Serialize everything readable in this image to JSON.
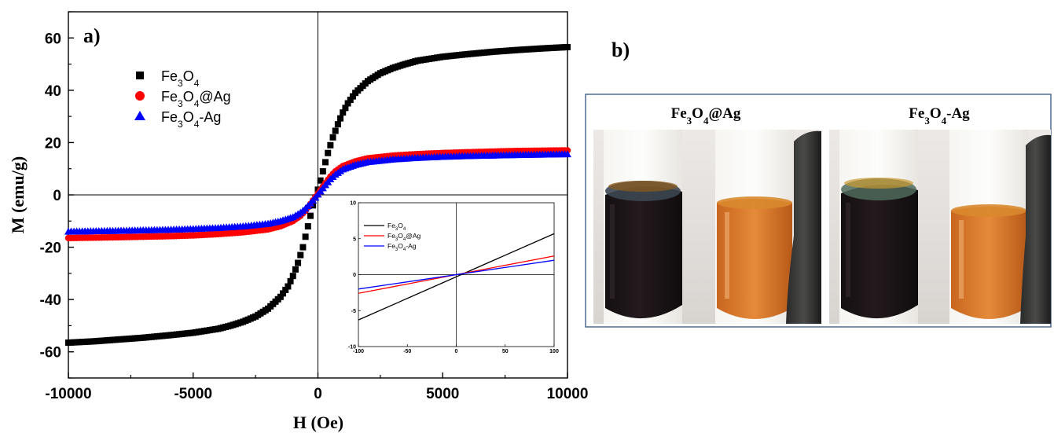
{
  "chart_data": [
    {
      "panel_label": "a)",
      "type": "scatter",
      "xlabel": "H (Oe)",
      "ylabel": "M (emu/g)",
      "xlim": [
        -10000,
        10000
      ],
      "ylim": [
        -70,
        70
      ],
      "x_ticks": [
        -10000,
        -5000,
        0,
        5000,
        10000
      ],
      "y_ticks": [
        -60,
        -40,
        -20,
        0,
        20,
        40,
        60
      ],
      "legend_position": "top-left",
      "series": [
        {
          "name_parts": [
            [
              "Fe",
              ""
            ],
            [
              "3",
              "sub"
            ],
            [
              "O",
              ""
            ],
            [
              "4",
              "sub"
            ]
          ],
          "color": "#000000",
          "marker": "square",
          "points": [
            [
              -10000,
              -56.5
            ],
            [
              -9000,
              -56
            ],
            [
              -8000,
              -55.3
            ],
            [
              -7000,
              -54.6
            ],
            [
              -6000,
              -53.7
            ],
            [
              -5000,
              -52.7
            ],
            [
              -4000,
              -51.2
            ],
            [
              -3500,
              -50
            ],
            [
              -3000,
              -48.5
            ],
            [
              -2500,
              -46.5
            ],
            [
              -2000,
              -43.5
            ],
            [
              -1500,
              -39
            ],
            [
              -1200,
              -35
            ],
            [
              -1000,
              -31
            ],
            [
              -800,
              -26
            ],
            [
              -600,
              -20
            ],
            [
              -400,
              -12
            ],
            [
              -200,
              -4
            ],
            [
              0,
              2
            ],
            [
              200,
              9
            ],
            [
              400,
              16
            ],
            [
              600,
              22
            ],
            [
              800,
              27
            ],
            [
              1000,
              31.5
            ],
            [
              1200,
              35
            ],
            [
              1500,
              39
            ],
            [
              2000,
              43.5
            ],
            [
              2500,
              46.5
            ],
            [
              3000,
              48.5
            ],
            [
              3500,
              50
            ],
            [
              4000,
              51.3
            ],
            [
              5000,
              52.8
            ],
            [
              6000,
              53.8
            ],
            [
              7000,
              54.7
            ],
            [
              8000,
              55.4
            ],
            [
              9000,
              56
            ],
            [
              10000,
              56.5
            ]
          ]
        },
        {
          "name_parts": [
            [
              "Fe",
              ""
            ],
            [
              "3",
              "sub"
            ],
            [
              "O",
              ""
            ],
            [
              "4",
              "sub"
            ],
            [
              "@Ag",
              ""
            ]
          ],
          "color": "#ff0000",
          "marker": "circle",
          "points": [
            [
              -10000,
              -16.5
            ],
            [
              -8000,
              -16.2
            ],
            [
              -6000,
              -15.8
            ],
            [
              -5000,
              -15.5
            ],
            [
              -4000,
              -15
            ],
            [
              -3000,
              -14.3
            ],
            [
              -2000,
              -13.2
            ],
            [
              -1500,
              -12
            ],
            [
              -1000,
              -10
            ],
            [
              -700,
              -8
            ],
            [
              -500,
              -6
            ],
            [
              -300,
              -3.5
            ],
            [
              -100,
              -0.8
            ],
            [
              0,
              0.5
            ],
            [
              100,
              1.8
            ],
            [
              300,
              4.5
            ],
            [
              500,
              7
            ],
            [
              700,
              9
            ],
            [
              1000,
              11
            ],
            [
              1500,
              12.8
            ],
            [
              2000,
              14
            ],
            [
              3000,
              15
            ],
            [
              4000,
              15.6
            ],
            [
              5000,
              16
            ],
            [
              6000,
              16.3
            ],
            [
              8000,
              16.8
            ],
            [
              10000,
              17
            ]
          ]
        },
        {
          "name_parts": [
            [
              "Fe",
              ""
            ],
            [
              "3",
              "sub"
            ],
            [
              "O",
              ""
            ],
            [
              "4",
              "sub"
            ],
            [
              "-Ag",
              ""
            ]
          ],
          "color": "#0000ff",
          "marker": "triangle",
          "points": [
            [
              -10000,
              -14
            ],
            [
              -8000,
              -13.7
            ],
            [
              -6000,
              -13.3
            ],
            [
              -5000,
              -13
            ],
            [
              -4000,
              -12.6
            ],
            [
              -3000,
              -12
            ],
            [
              -2000,
              -11
            ],
            [
              -1500,
              -10
            ],
            [
              -1000,
              -8.5
            ],
            [
              -700,
              -6.8
            ],
            [
              -500,
              -5.2
            ],
            [
              -300,
              -3.2
            ],
            [
              -100,
              -1
            ],
            [
              0,
              0.2
            ],
            [
              100,
              1.4
            ],
            [
              300,
              3.8
            ],
            [
              500,
              6
            ],
            [
              700,
              7.8
            ],
            [
              1000,
              9.8
            ],
            [
              1500,
              11.5
            ],
            [
              2000,
              12.6
            ],
            [
              3000,
              13.6
            ],
            [
              4000,
              14.2
            ],
            [
              5000,
              14.6
            ],
            [
              6000,
              14.9
            ],
            [
              8000,
              15.3
            ],
            [
              10000,
              15.6
            ]
          ]
        }
      ]
    },
    {
      "role": "inset",
      "type": "line",
      "xlim": [
        -100,
        100
      ],
      "ylim": [
        -10,
        10
      ],
      "x_ticks": [
        -100,
        -50,
        0,
        50,
        100
      ],
      "y_ticks": [
        -10,
        -5,
        0,
        5,
        10
      ],
      "legend_position": "top-left",
      "series": [
        {
          "name_parts": [
            [
              "Fe",
              ""
            ],
            [
              "3",
              "sub"
            ],
            [
              "O",
              ""
            ],
            [
              "4",
              "sub"
            ]
          ],
          "color": "#000000",
          "points": [
            [
              -100,
              -6.3
            ],
            [
              100,
              5.7
            ]
          ]
        },
        {
          "name_parts": [
            [
              "Fe",
              ""
            ],
            [
              "3",
              "sub"
            ],
            [
              "O",
              ""
            ],
            [
              "4",
              "sub"
            ],
            [
              "@Ag",
              ""
            ]
          ],
          "color": "#ff0000",
          "points": [
            [
              -100,
              -2.6
            ],
            [
              100,
              2.6
            ]
          ]
        },
        {
          "name_parts": [
            [
              "Fe",
              ""
            ],
            [
              "3",
              "sub"
            ],
            [
              "O",
              ""
            ],
            [
              "4",
              "sub"
            ],
            [
              "-Ag",
              ""
            ]
          ],
          "color": "#0000ff",
          "points": [
            [
              -100,
              -2.0
            ],
            [
              100,
              2.0
            ]
          ]
        }
      ]
    }
  ],
  "panel_b": {
    "label": "b)",
    "photos": [
      {
        "caption_parts": [
          [
            "Fe",
            ""
          ],
          [
            "3",
            "sub"
          ],
          [
            "O",
            ""
          ],
          [
            "4",
            "sub"
          ],
          [
            "@Ag",
            ""
          ]
        ]
      },
      {
        "caption_parts": [
          [
            "Fe",
            ""
          ],
          [
            "3",
            "sub"
          ],
          [
            "O",
            ""
          ],
          [
            "4",
            "sub"
          ],
          [
            "-Ag",
            ""
          ]
        ]
      }
    ]
  }
}
